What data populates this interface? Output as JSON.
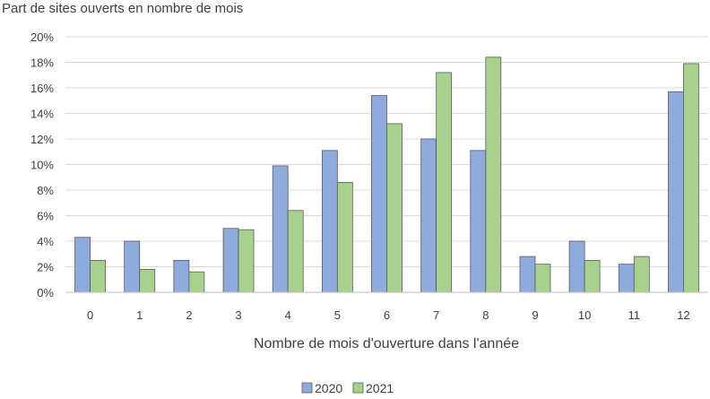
{
  "chart_data": {
    "type": "bar",
    "title": "Part de sites ouverts en nombre de mois",
    "xlabel": "Nombre de mois d'ouverture dans l'année",
    "ylabel": "",
    "categories": [
      "0",
      "1",
      "2",
      "3",
      "4",
      "5",
      "6",
      "7",
      "8",
      "9",
      "10",
      "11",
      "12"
    ],
    "series": [
      {
        "name": "2020",
        "color": "#8faadc",
        "values": [
          4.3,
          4.0,
          2.5,
          5.0,
          9.9,
          11.1,
          15.4,
          12.0,
          11.1,
          2.8,
          4.0,
          2.2,
          15.7
        ]
      },
      {
        "name": "2021",
        "color": "#a9d18e",
        "values": [
          2.5,
          1.8,
          1.6,
          4.9,
          6.4,
          8.6,
          13.2,
          17.2,
          18.4,
          2.2,
          2.5,
          2.8,
          17.9
        ]
      }
    ],
    "ylim": [
      0,
      20
    ],
    "yticks": [
      "0%",
      "2%",
      "4%",
      "6%",
      "8%",
      "10%",
      "12%",
      "14%",
      "16%",
      "18%",
      "20%"
    ],
    "grid": true,
    "legend_position": "bottom"
  }
}
